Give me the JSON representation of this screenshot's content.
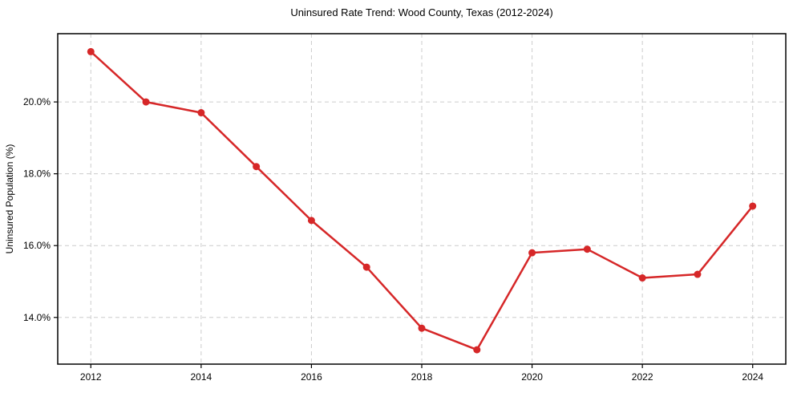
{
  "chart_data": {
    "type": "line",
    "title": "Uninsured Rate Trend: Wood County, Texas (2012-2024)",
    "xlabel": "",
    "ylabel": "Uninsured Population (%)",
    "x": [
      2012,
      2013,
      2014,
      2015,
      2016,
      2017,
      2018,
      2019,
      2020,
      2021,
      2022,
      2023,
      2024
    ],
    "values": [
      21.4,
      20.0,
      19.7,
      18.2,
      16.7,
      15.4,
      13.7,
      13.1,
      15.8,
      15.9,
      15.1,
      15.2,
      17.1
    ],
    "x_ticks": [
      2012,
      2014,
      2016,
      2018,
      2020,
      2022,
      2024
    ],
    "x_tick_labels": [
      "2012",
      "2014",
      "2016",
      "2018",
      "2020",
      "2022",
      "2024"
    ],
    "y_ticks": [
      14,
      16,
      18,
      20
    ],
    "y_tick_labels": [
      "14.0%",
      "16.0%",
      "18.0%",
      "20.0%"
    ],
    "xlim": [
      2011.4,
      2024.6
    ],
    "ylim": [
      12.7,
      21.9
    ],
    "grid": true,
    "legend": "none",
    "line_color": "#d62728",
    "marker": "circle",
    "background_color": "#ffffff",
    "grid_color": "#cccccc"
  }
}
